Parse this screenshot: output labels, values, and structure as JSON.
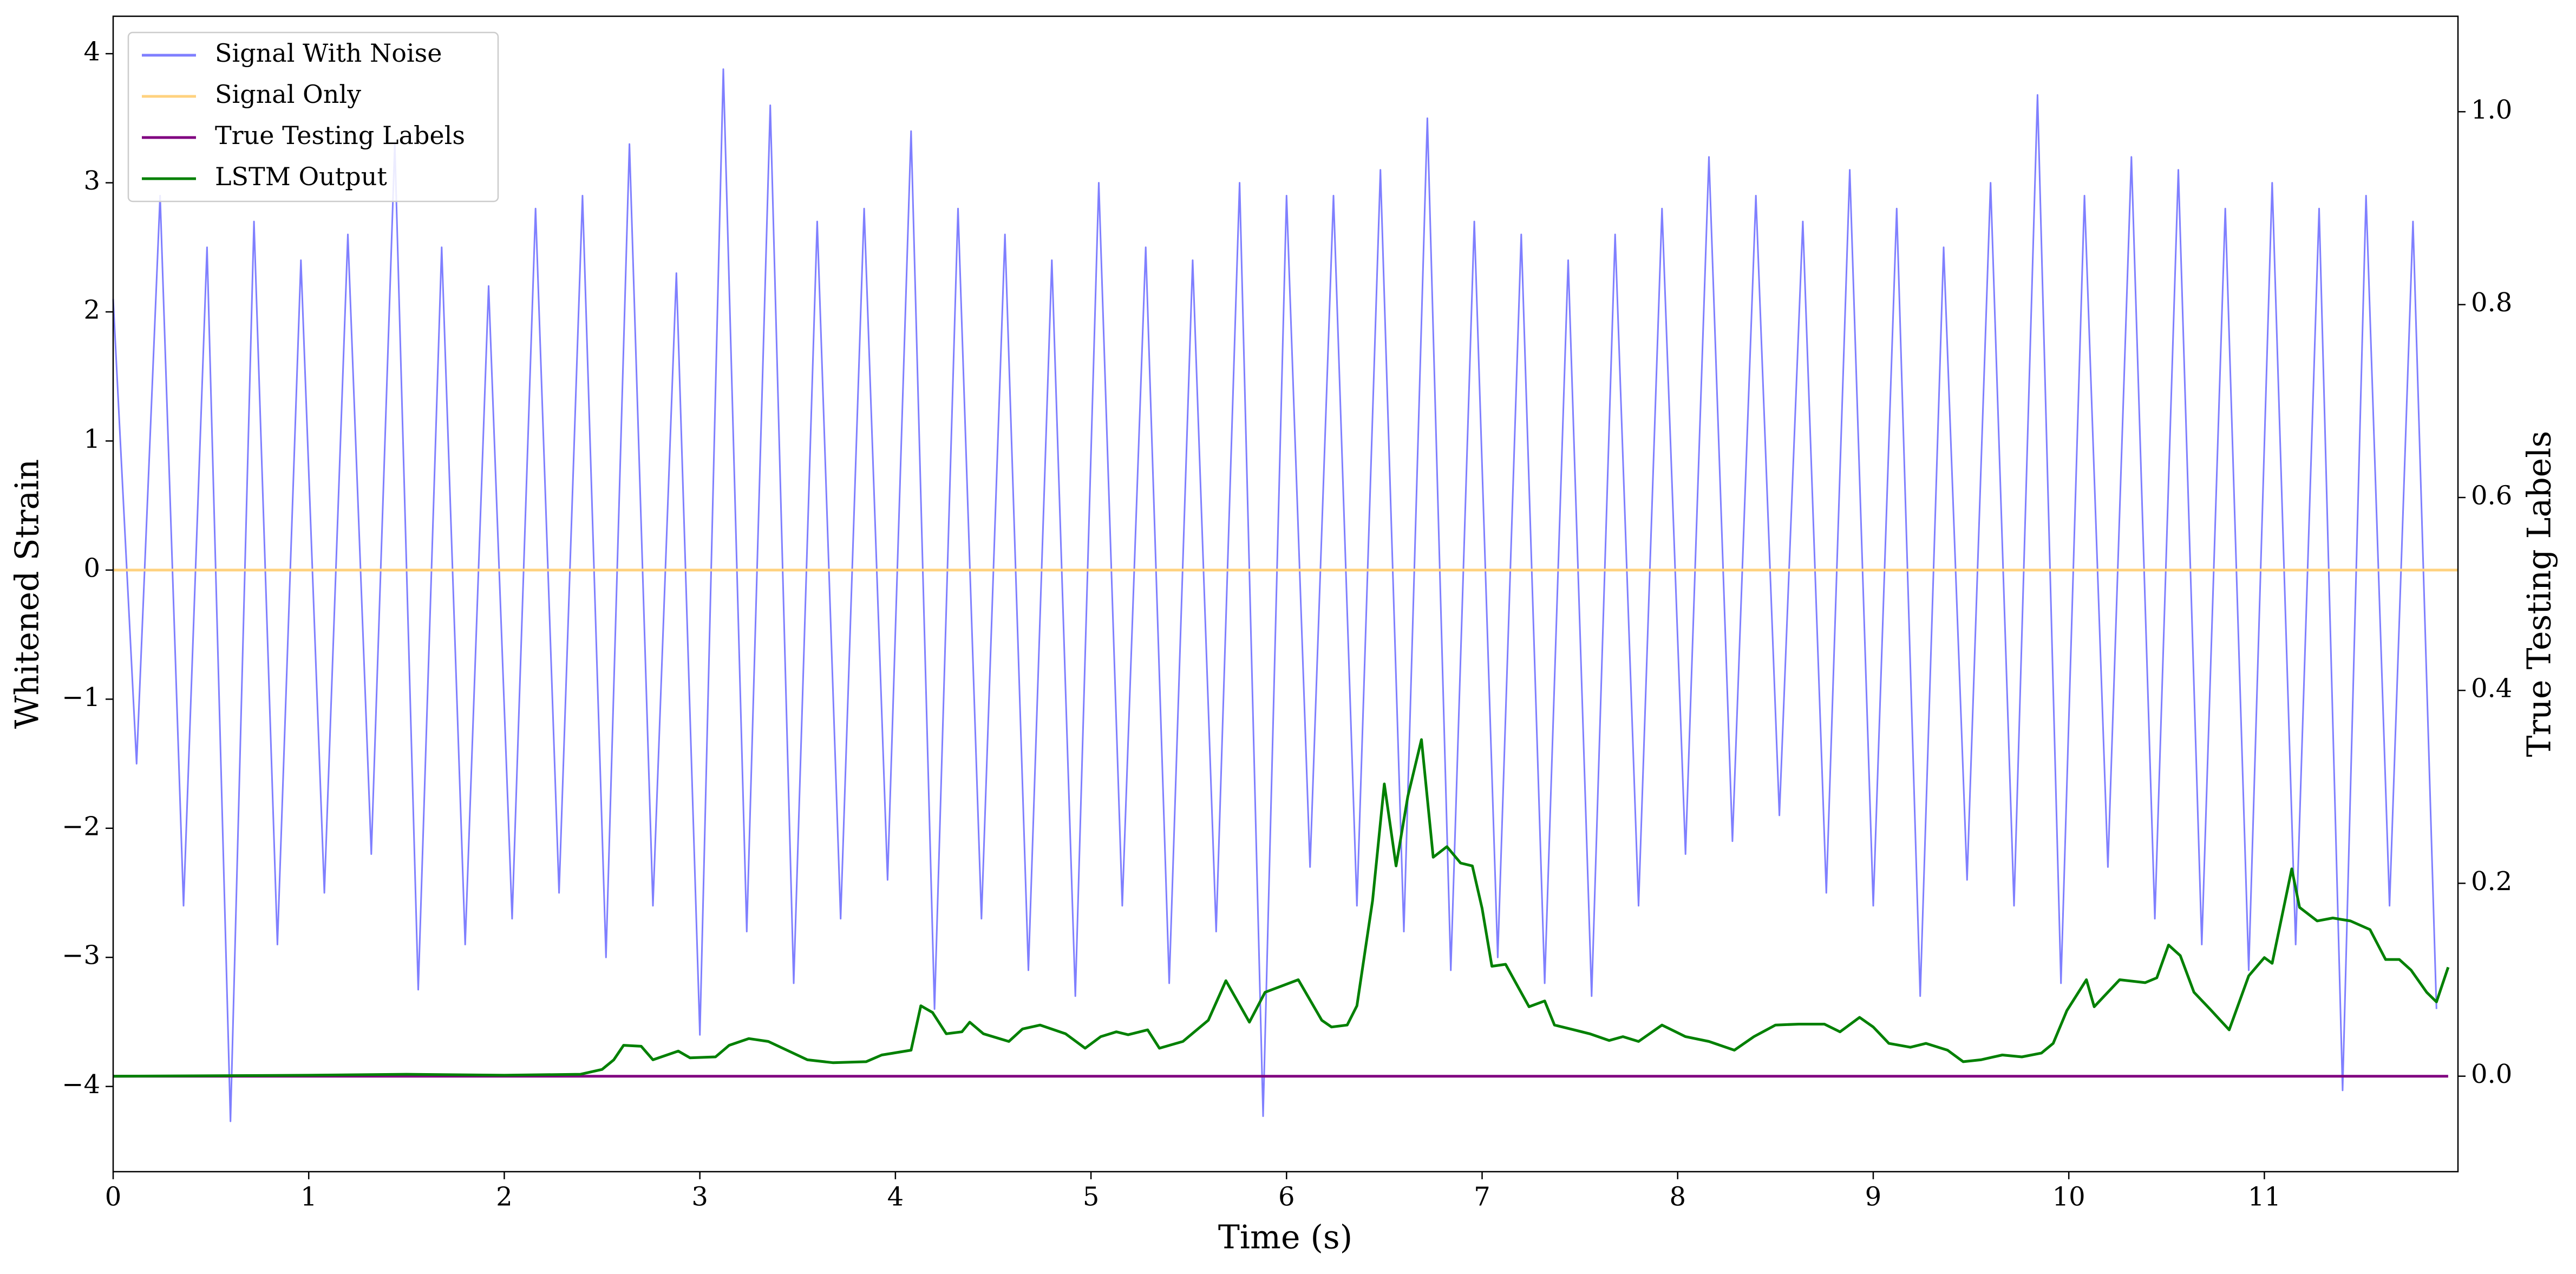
{
  "chart_data": {
    "type": "line",
    "xlabel": "Time (s)",
    "ylabel": "Whitened Strain",
    "y2label": "True Testing Labels",
    "xlim": [
      0,
      11.99
    ],
    "xticks": [
      0,
      1,
      2,
      3,
      4,
      5,
      6,
      7,
      8,
      9,
      10,
      11
    ],
    "ylim": [
      -4.66,
      4.29
    ],
    "yticks": [
      {
        "value": -4,
        "label": "−4"
      },
      {
        "value": -3,
        "label": "−3"
      },
      {
        "value": -2,
        "label": "−2"
      },
      {
        "value": -1,
        "label": "−1"
      },
      0,
      1,
      2,
      3,
      4
    ],
    "y2lim": [
      -0.099,
      1.099
    ],
    "y2ticks": [
      {
        "value": 0,
        "label": "0.0"
      },
      0.2,
      0.4,
      0.6,
      0.8,
      {
        "value": 1,
        "label": "1.0"
      }
    ],
    "legend": "upper left",
    "series": [
      {
        "name": "Signal With Noise",
        "color": "#7f7fff",
        "x": [
          0,
          0.12,
          0.24,
          0.36,
          0.48,
          0.6,
          0.72,
          0.84,
          0.96,
          1.08,
          1.2,
          1.32,
          1.44,
          1.56,
          1.68,
          1.8,
          1.92,
          2.04,
          2.16,
          2.28,
          2.4,
          2.52,
          2.64,
          2.76,
          2.88,
          3.0,
          3.12,
          3.24,
          3.36,
          3.48,
          3.6,
          3.72,
          3.84,
          3.96,
          4.08,
          4.2,
          4.32,
          4.44,
          4.56,
          4.68,
          4.8,
          4.92,
          5.04,
          5.16,
          5.28,
          5.4,
          5.52,
          5.64,
          5.76,
          5.88,
          6.0,
          6.12,
          6.24,
          6.36,
          6.48,
          6.6,
          6.72,
          6.84,
          6.96,
          7.08,
          7.2,
          7.32,
          7.44,
          7.56,
          7.68,
          7.8,
          7.92,
          8.04,
          8.16,
          8.28,
          8.4,
          8.52,
          8.64,
          8.76,
          8.88,
          9.0,
          9.12,
          9.24,
          9.36,
          9.48,
          9.6,
          9.72,
          9.84,
          9.96,
          10.08,
          10.2,
          10.32,
          10.44,
          10.56,
          10.68,
          10.8,
          10.92,
          11.04,
          11.16,
          11.28,
          11.4,
          11.52,
          11.64,
          11.76,
          11.88
        ],
        "values": [
          2.1,
          -1.5,
          2.9,
          -2.6,
          2.5,
          -4.27,
          2.7,
          -2.9,
          2.4,
          -2.5,
          2.6,
          -2.2,
          3.3,
          -3.25,
          2.5,
          -2.9,
          2.2,
          -2.7,
          2.8,
          -2.5,
          2.9,
          -3.0,
          3.3,
          -2.6,
          2.3,
          -3.6,
          3.88,
          -2.8,
          3.6,
          -3.2,
          2.7,
          -2.7,
          2.8,
          -2.4,
          3.4,
          -3.4,
          2.8,
          -2.7,
          2.6,
          -3.1,
          2.4,
          -3.3,
          3.0,
          -2.6,
          2.5,
          -3.2,
          2.4,
          -2.8,
          3.0,
          -4.23,
          2.9,
          -2.3,
          2.9,
          -2.6,
          3.1,
          -2.8,
          3.5,
          -3.1,
          2.7,
          -3.0,
          2.6,
          -3.2,
          2.4,
          -3.3,
          2.6,
          -2.6,
          2.8,
          -2.2,
          3.2,
          -2.1,
          2.9,
          -1.9,
          2.7,
          -2.5,
          3.1,
          -2.6,
          2.8,
          -3.3,
          2.5,
          -2.4,
          3.0,
          -2.6,
          3.68,
          -3.2,
          2.9,
          -2.3,
          3.2,
          -2.7,
          3.1,
          -2.9,
          2.8,
          -3.1,
          3.0,
          -2.9,
          2.8,
          -4.03,
          2.9,
          -2.6,
          2.7,
          -3.4
        ]
      },
      {
        "name": "Signal Only",
        "color": "#ffd27f",
        "x": [
          0,
          11.99
        ],
        "values": [
          0,
          0
        ]
      },
      {
        "name": "True Testing Labels",
        "color": "#800080",
        "axis": "y2",
        "x": [
          0,
          11.94
        ],
        "values": [
          0,
          0
        ]
      },
      {
        "name": "LSTM Output",
        "color": "#008000",
        "axis": "y2",
        "x": [
          0,
          1.0,
          1.5,
          2.0,
          2.39,
          2.5,
          2.56,
          2.61,
          2.7,
          2.76,
          2.89,
          2.95,
          3.08,
          3.15,
          3.25,
          3.35,
          3.55,
          3.68,
          3.85,
          3.93,
          4.08,
          4.13,
          4.19,
          4.26,
          4.34,
          4.38,
          4.45,
          4.58,
          4.65,
          4.74,
          4.87,
          4.97,
          5.05,
          5.13,
          5.19,
          5.29,
          5.35,
          5.47,
          5.6,
          5.69,
          5.81,
          5.89,
          6.06,
          6.18,
          6.23,
          6.31,
          6.36,
          6.44,
          6.5,
          6.56,
          6.62,
          6.69,
          6.75,
          6.82,
          6.89,
          6.95,
          7.0,
          7.05,
          7.12,
          7.18,
          7.24,
          7.32,
          7.37,
          7.47,
          7.55,
          7.65,
          7.72,
          7.8,
          7.92,
          8.04,
          8.16,
          8.29,
          8.39,
          8.5,
          8.62,
          8.75,
          8.83,
          8.93,
          9.0,
          9.08,
          9.19,
          9.27,
          9.38,
          9.46,
          9.55,
          9.66,
          9.76,
          9.86,
          9.92,
          9.99,
          10.09,
          10.13,
          10.26,
          10.39,
          10.45,
          10.51,
          10.57,
          10.64,
          10.72,
          10.82,
          10.92,
          11.0,
          11.04,
          11.14,
          11.18,
          11.27,
          11.35,
          11.44,
          11.54,
          11.62,
          11.69,
          11.75,
          11.83,
          11.88,
          11.94
        ],
        "values": [
          0,
          0.001,
          0.002,
          0.001,
          0.002,
          0.007,
          0.017,
          0.032,
          0.031,
          0.017,
          0.026,
          0.019,
          0.02,
          0.032,
          0.039,
          0.036,
          0.017,
          0.014,
          0.015,
          0.022,
          0.027,
          0.073,
          0.066,
          0.044,
          0.046,
          0.056,
          0.044,
          0.036,
          0.049,
          0.053,
          0.044,
          0.029,
          0.041,
          0.046,
          0.043,
          0.048,
          0.029,
          0.036,
          0.058,
          0.099,
          0.056,
          0.087,
          0.1,
          0.058,
          0.051,
          0.053,
          0.073,
          0.182,
          0.303,
          0.218,
          0.29,
          0.349,
          0.227,
          0.238,
          0.221,
          0.218,
          0.174,
          0.114,
          0.116,
          0.094,
          0.072,
          0.078,
          0.053,
          0.048,
          0.044,
          0.037,
          0.041,
          0.036,
          0.053,
          0.041,
          0.036,
          0.027,
          0.041,
          0.053,
          0.054,
          0.054,
          0.046,
          0.061,
          0.051,
          0.034,
          0.03,
          0.034,
          0.027,
          0.015,
          0.017,
          0.022,
          0.02,
          0.024,
          0.034,
          0.068,
          0.1,
          0.072,
          0.1,
          0.097,
          0.102,
          0.136,
          0.125,
          0.087,
          0.07,
          0.048,
          0.104,
          0.123,
          0.117,
          0.215,
          0.175,
          0.161,
          0.164,
          0.161,
          0.152,
          0.121,
          0.121,
          0.11,
          0.087,
          0.077,
          0.113
        ]
      }
    ]
  }
}
